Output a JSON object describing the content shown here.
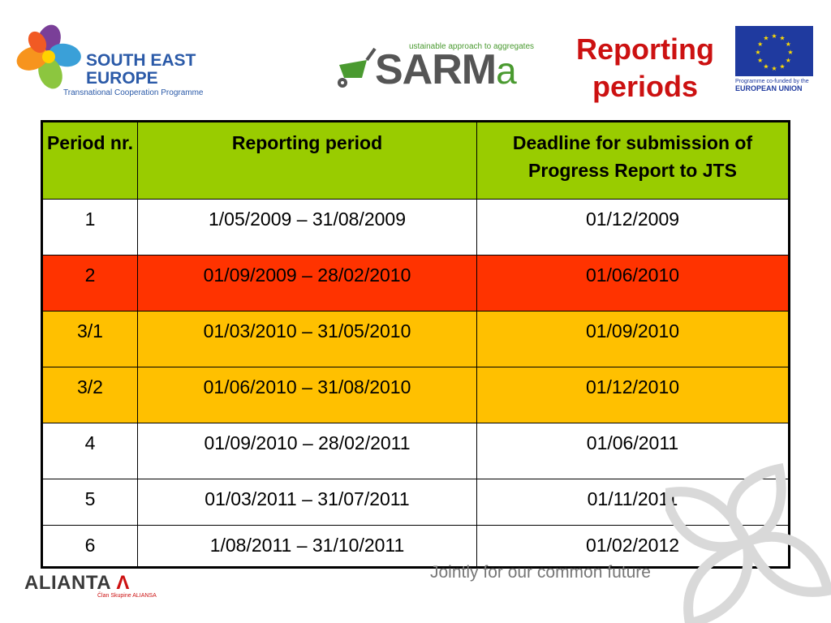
{
  "logos": {
    "see_line1": "SOUTH EAST",
    "see_line2": "EUROPE",
    "see_sub": "Transnational Cooperation Programme",
    "sarma_tag": "ustainable approach to aggregates",
    "sarma_word": "SARM",
    "sarma_a": "a",
    "eu_caption1": "Programme co-funded by the",
    "eu_caption2": "EUROPEAN UNION",
    "alianta_word": "ALIANTA",
    "alianta_sub": "Član Skupine ALIANSA"
  },
  "title_line1": "Reporting",
  "title_line2": "periods",
  "table": {
    "headers": [
      "Period nr.",
      "Reporting period",
      "Deadline for submission of Progress Report to JTS"
    ],
    "rows": [
      {
        "nr": "1",
        "period": "1/05/2009 – 31/08/2009",
        "deadline": "01/12/2009",
        "color": "#ffffff"
      },
      {
        "nr": "2",
        "period": "01/09/2009 – 28/02/2010",
        "deadline": "01/06/2010",
        "color": "#ff3300"
      },
      {
        "nr": "3/1",
        "period": "01/03/2010 – 31/05/2010",
        "deadline": "01/09/2010",
        "color": "#ffc000"
      },
      {
        "nr": "3/2",
        "period": "01/06/2010 – 31/08/2010",
        "deadline": "01/12/2010",
        "color": "#ffc000"
      },
      {
        "nr": "4",
        "period": "01/09/2010 – 28/02/2011",
        "deadline": "01/06/2011",
        "color": "#ffffff"
      },
      {
        "nr": "5",
        "period": "01/03/2011 – 31/07/2011",
        "deadline": "01/11/2011",
        "color": "#ffffff"
      },
      {
        "nr": "6",
        "period": "1/08/2011 – 31/10/2011",
        "deadline": "01/02/2012",
        "color": "#ffffff"
      }
    ]
  },
  "footer_tagline": "Jointly for our common future",
  "colors": {
    "header_green": "#99cc00",
    "title_red": "#cc1111",
    "eu_blue": "#1f3a9f"
  }
}
